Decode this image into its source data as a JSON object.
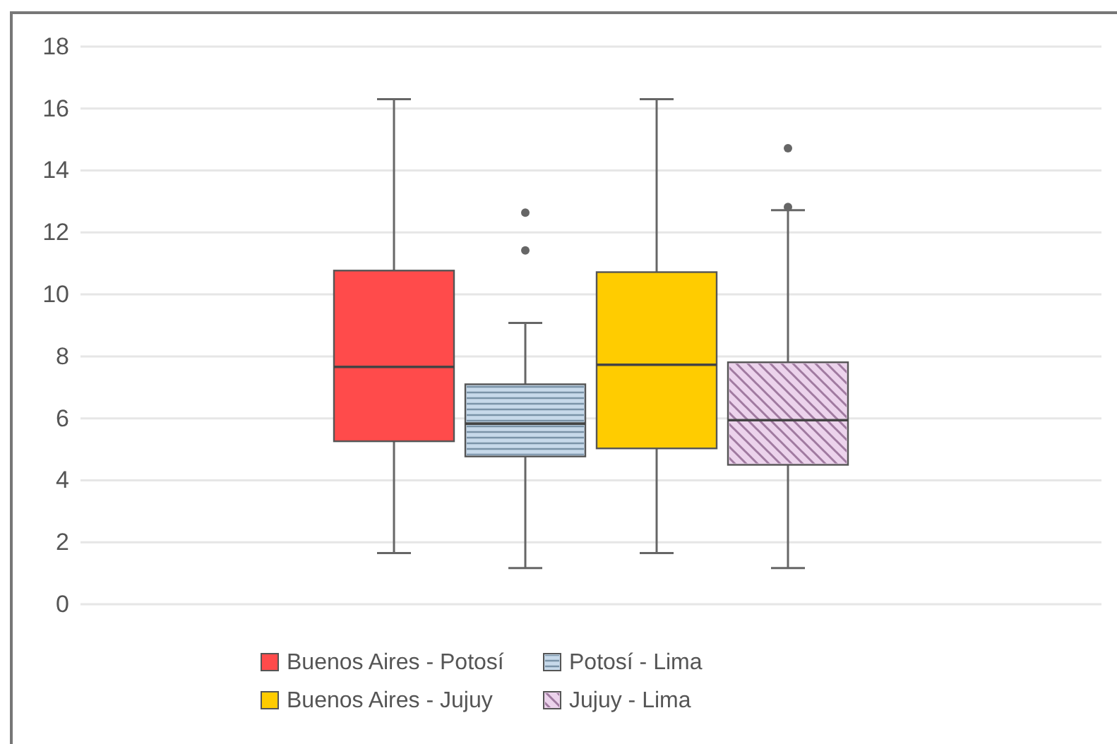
{
  "chart_data": {
    "type": "box",
    "categories": [
      null
    ],
    "ylim": [
      0,
      18
    ],
    "yticks": [
      0,
      2,
      4,
      6,
      8,
      10,
      12,
      14,
      16,
      18
    ],
    "grid": "y",
    "legend": "bottom",
    "series": [
      {
        "name": "Buenos Aires - Potosí",
        "color": "#ff4b4b",
        "boxes": [
          {
            "low": 1.65,
            "q1": 5.26,
            "median": 7.66,
            "q3": 10.77,
            "high": 16.3
          }
        ]
      },
      {
        "name": "Potosí - Lima",
        "color": "#c7d9ea",
        "boxes": [
          {
            "low": 1.17,
            "q1": 4.77,
            "median": 5.83,
            "q3": 7.1,
            "high": 9.08,
            "outliers": [
              11.42,
              12.64
            ]
          }
        ]
      },
      {
        "name": "Buenos Aires - Jujuy",
        "color": "#ffcc00",
        "boxes": [
          {
            "low": 1.65,
            "q1": 5.03,
            "median": 7.73,
            "q3": 10.72,
            "high": 16.3
          }
        ]
      },
      {
        "name": "Jujuy - Lima",
        "color": "#ecd3ec",
        "boxes": [
          {
            "low": 1.17,
            "q1": 4.5,
            "median": 5.94,
            "q3": 7.81,
            "high": 12.72,
            "outliers": [
              12.82,
              14.72
            ]
          }
        ]
      }
    ]
  }
}
